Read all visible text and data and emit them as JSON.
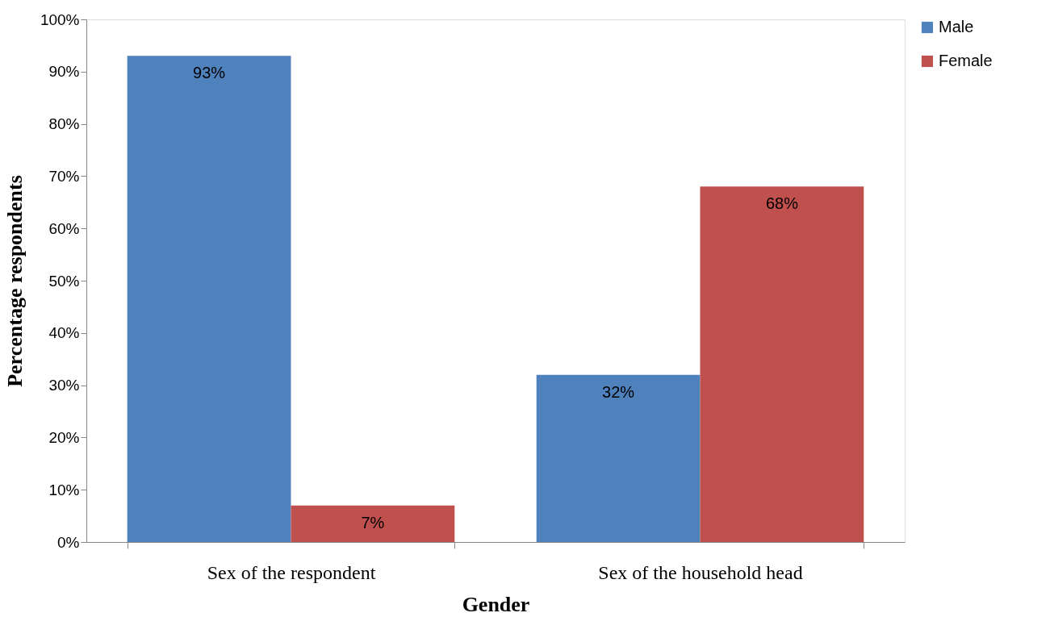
{
  "chart_data": {
    "type": "bar",
    "xlabel": "Gender",
    "ylabel": "Percentage  respondents",
    "categories": [
      "Sex of the respondent",
      "Sex of the household head"
    ],
    "series": [
      {
        "name": "Male",
        "color": "#4f81bd",
        "values": [
          93,
          32
        ],
        "value_labels": [
          "93%",
          "32%"
        ]
      },
      {
        "name": "Female",
        "color": "#c0504d",
        "values": [
          7,
          68
        ],
        "value_labels": [
          "7%",
          "68%"
        ]
      }
    ],
    "ylim": [
      0,
      100
    ],
    "yticks": [
      {
        "value": 0,
        "label": "0%"
      },
      {
        "value": 10,
        "label": "10%"
      },
      {
        "value": 20,
        "label": "20%"
      },
      {
        "value": 30,
        "label": "30%"
      },
      {
        "value": 40,
        "label": "40%"
      },
      {
        "value": 50,
        "label": "50%"
      },
      {
        "value": 60,
        "label": "60%"
      },
      {
        "value": 70,
        "label": "70%"
      },
      {
        "value": 80,
        "label": "80%"
      },
      {
        "value": 90,
        "label": "90%"
      },
      {
        "value": 100,
        "label": "100%"
      }
    ],
    "grid": false,
    "legend": "right"
  }
}
